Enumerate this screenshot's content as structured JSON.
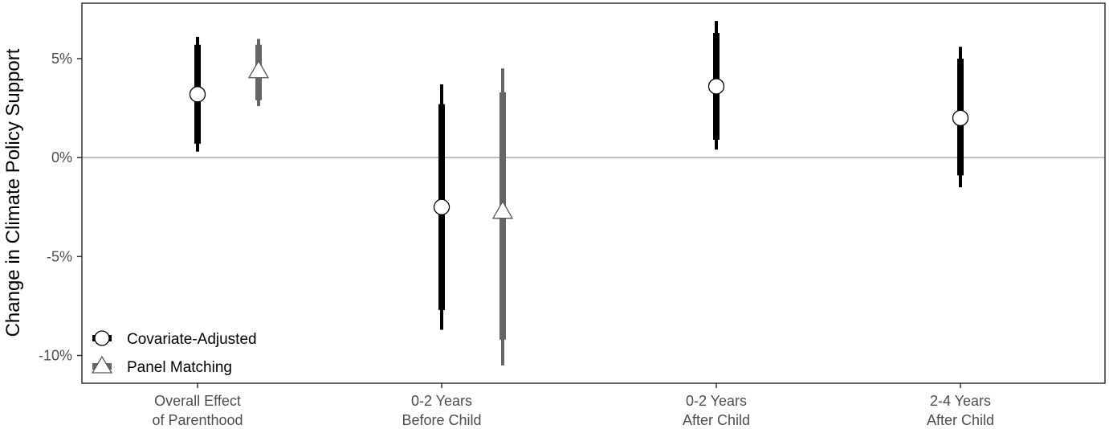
{
  "chart_data": {
    "type": "errorbar",
    "ylabel": "Change in Climate Policy Support",
    "xlabel": "",
    "ylim": [
      -11.4,
      7.8
    ],
    "yticks": [
      {
        "value": 5,
        "label": "5%"
      },
      {
        "value": 0,
        "label": "0%"
      },
      {
        "value": -5,
        "label": "-5%"
      },
      {
        "value": -10,
        "label": "-10%"
      }
    ],
    "zero_reference_line": true,
    "grid": false,
    "legend_position": "bottom-left",
    "categories": [
      {
        "line1": "Overall Effect",
        "line2": "of Parenthood"
      },
      {
        "line1": "0-2 Years",
        "line2": "Before Child"
      },
      {
        "line1": "0-2 Years",
        "line2": "After Child"
      },
      {
        "line1": "2-4 Years",
        "line2": "After Child"
      }
    ],
    "series": [
      {
        "name": "Covariate-Adjusted",
        "marker": "circle",
        "color": "#000000",
        "points": [
          {
            "category": 0,
            "estimate": 3.2,
            "ci90": [
              0.7,
              5.7
            ],
            "ci95": [
              0.3,
              6.1
            ]
          },
          {
            "category": 1,
            "estimate": -2.5,
            "ci90": [
              -7.7,
              2.7
            ],
            "ci95": [
              -8.7,
              3.7
            ]
          },
          {
            "category": 2,
            "estimate": 3.6,
            "ci90": [
              0.9,
              6.3
            ],
            "ci95": [
              0.4,
              6.9
            ]
          },
          {
            "category": 3,
            "estimate": 2.0,
            "ci90": [
              -0.9,
              5.0
            ],
            "ci95": [
              -1.5,
              5.6
            ]
          }
        ]
      },
      {
        "name": "Panel Matching",
        "marker": "triangle",
        "color": "#666666",
        "points": [
          {
            "category": 0,
            "estimate": 4.4,
            "ci90": [
              2.9,
              5.7
            ],
            "ci95": [
              2.6,
              6.0
            ]
          },
          {
            "category": 1,
            "estimate": -2.7,
            "ci90": [
              -9.2,
              3.3
            ],
            "ci95": [
              -10.5,
              4.5
            ]
          }
        ]
      }
    ]
  }
}
